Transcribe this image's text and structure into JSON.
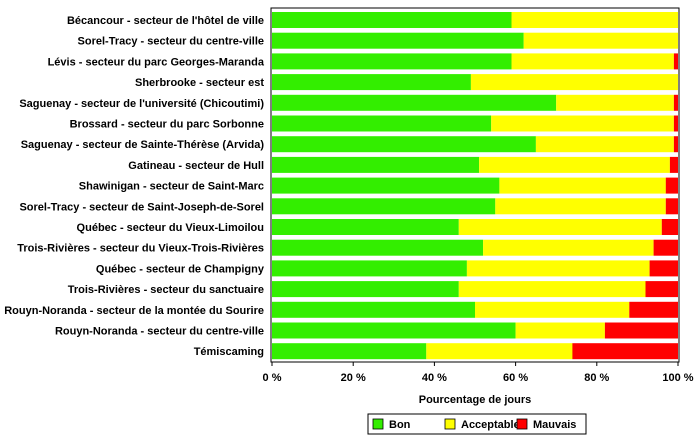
{
  "chart_data": {
    "type": "bar",
    "orientation": "horizontal",
    "stacked": true,
    "categories": [
      "Bécancour - secteur de l'hôtel de ville",
      "Sorel-Tracy - secteur du centre-ville",
      "Lévis - secteur du parc Georges-Maranda",
      "Sherbrooke - secteur est",
      "Saguenay - secteur de l'université (Chicoutimi)",
      "Brossard - secteur du parc Sorbonne",
      "Saguenay - secteur de Sainte-Thérèse (Arvida)",
      "Gatineau - secteur de Hull",
      "Shawinigan - secteur de Saint-Marc",
      "Sorel-Tracy - secteur de Saint-Joseph-de-Sorel",
      "Québec - secteur du Vieux-Limoilou",
      "Trois-Rivières - secteur du Vieux-Trois-Rivières",
      "Québec - secteur de Champigny",
      "Trois-Rivières - secteur du sanctuaire",
      "Rouyn-Noranda - secteur de la montée du Sourire",
      "Rouyn-Noranda - secteur du centre-ville",
      "Témiscaming"
    ],
    "series": [
      {
        "name": "Bon",
        "color": "#33ee00",
        "values": [
          59,
          62,
          59,
          49,
          70,
          54,
          65,
          51,
          56,
          55,
          46,
          52,
          48,
          46,
          50,
          60,
          38
        ]
      },
      {
        "name": "Acceptable",
        "color": "#ffff00",
        "values": [
          41,
          38,
          40,
          51,
          29,
          45,
          34,
          47,
          41,
          42,
          50,
          42,
          45,
          46,
          38,
          22,
          36
        ]
      },
      {
        "name": "Mauvais",
        "color": "#ff0000",
        "values": [
          0,
          0,
          1,
          0,
          1,
          1,
          1,
          2,
          3,
          3,
          4,
          6,
          7,
          8,
          12,
          18,
          26
        ]
      }
    ],
    "xlabel": "Pourcentage de jours",
    "xlim": [
      0,
      100
    ],
    "xticks": [
      0,
      20,
      40,
      60,
      80,
      100
    ],
    "xtick_labels": [
      "0 %",
      "20 %",
      "40 %",
      "60 %",
      "80 %",
      "100 %"
    ],
    "legend_position": "bottom-right",
    "grid": false
  }
}
